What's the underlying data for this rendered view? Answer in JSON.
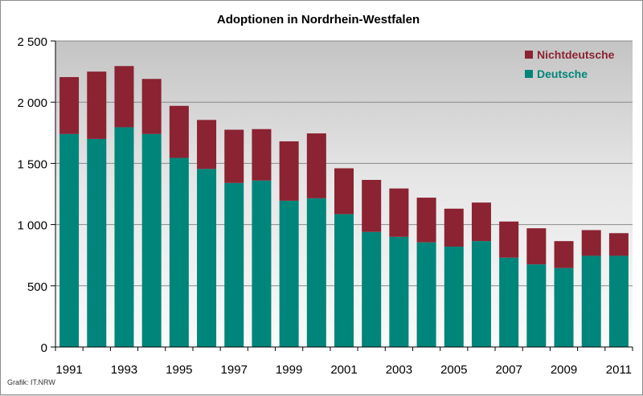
{
  "chart_data": {
    "type": "bar",
    "stacked": true,
    "title": "Adoptionen in Nordrhein-Westfalen",
    "xlabel": "",
    "ylabel": "",
    "ylim": [
      0,
      2500
    ],
    "yticks": [
      {
        "value": 0,
        "label": "0"
      },
      {
        "value": 500,
        "label": "500"
      },
      {
        "value": 1000,
        "label": "1 000"
      },
      {
        "value": 1500,
        "label": "1 500"
      },
      {
        "value": 2000,
        "label": "2 000"
      },
      {
        "value": 2500,
        "label": "2 500"
      }
    ],
    "grid": true,
    "legend_position": "top-right",
    "categories": [
      "1991",
      "1992",
      "1993",
      "1994",
      "1995",
      "1996",
      "1997",
      "1998",
      "1999",
      "2000",
      "2001",
      "2002",
      "2003",
      "2004",
      "2005",
      "2006",
      "2007",
      "2008",
      "2009",
      "2010",
      "2011"
    ],
    "x_tick_labels": [
      "1991",
      "",
      "1993",
      "",
      "1995",
      "",
      "1997",
      "",
      "1999",
      "",
      "2001",
      "",
      "2003",
      "",
      "2005",
      "",
      "2007",
      "",
      "2009",
      "",
      "2011"
    ],
    "series": [
      {
        "name": "Deutsche",
        "color": "#00857a",
        "values": [
          1740,
          1700,
          1795,
          1740,
          1545,
          1455,
          1340,
          1360,
          1195,
          1215,
          1085,
          940,
          900,
          855,
          820,
          865,
          730,
          675,
          645,
          745,
          745
        ]
      },
      {
        "name": "Nichtdeutsche",
        "color": "#8b2332",
        "values": [
          465,
          550,
          500,
          450,
          425,
          400,
          435,
          420,
          485,
          530,
          375,
          425,
          395,
          365,
          310,
          315,
          295,
          295,
          220,
          210,
          185
        ]
      }
    ],
    "legend_order": [
      "Nichtdeutsche",
      "Deutsche"
    ],
    "footnote": "Grafik: IT.NRW"
  }
}
